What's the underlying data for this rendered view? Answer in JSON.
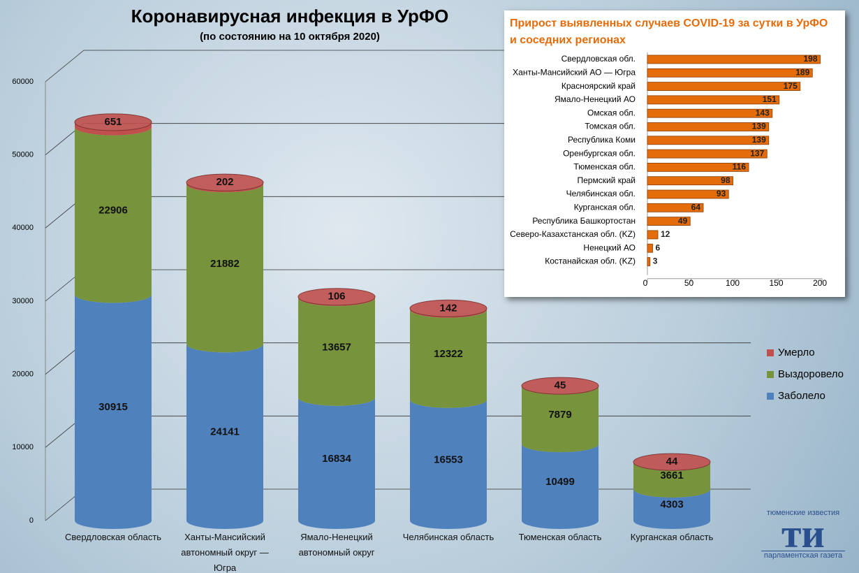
{
  "chart_data": [
    {
      "type": "bar",
      "stacked": true,
      "title": "Коронавирусная инфекция в УрФО",
      "subtitle": "(по состоянию на 10 октября 2020)",
      "categories": [
        "Свердловская область",
        "Ханты-Мансийский автономный округ — Югра",
        "Ямало-Ненецкий автономный округ",
        "Челябинская область",
        "Тюменская область",
        "Курганская область"
      ],
      "series": [
        {
          "name": "Заболело",
          "color": "#4f81bd",
          "values": [
            30915,
            24141,
            16834,
            16553,
            10499,
            4303
          ]
        },
        {
          "name": "Выздоровело",
          "color": "#77933c",
          "values": [
            22906,
            21882,
            13657,
            12322,
            7879,
            3661
          ]
        },
        {
          "name": "Умерло",
          "color": "#c0504d",
          "values": [
            651,
            202,
            106,
            142,
            45,
            44
          ]
        }
      ],
      "ylim": [
        0,
        60000
      ],
      "yticks": [
        0,
        10000,
        20000,
        30000,
        40000,
        50000,
        60000
      ],
      "grid": true,
      "legend": "right"
    },
    {
      "type": "barh",
      "title": "Прирост выявленных случаев COVID-19 за сутки в УрФО и соседних регионах",
      "categories": [
        "Свердловская обл.",
        "Ханты-Мансийский АО — Югра",
        "Красноярский край",
        "Ямало-Ненецкий АО",
        "Омская обл.",
        "Томская обл.",
        "Республика Коми",
        "Оренбургская обл.",
        "Тюменская обл.",
        "Пермский край",
        "Челябинская обл.",
        "Курганская обл.",
        "Республика Башкортостан",
        "Северо-Казахстанская обл. (KZ)",
        "Ненецкий АО",
        "Костанайская обл. (KZ)"
      ],
      "values": [
        198,
        189,
        175,
        151,
        143,
        139,
        139,
        137,
        116,
        98,
        93,
        64,
        49,
        12,
        6,
        3
      ],
      "color": "#e46c0a",
      "xlim": [
        0,
        200
      ],
      "xticks": [
        0,
        50,
        100,
        150,
        200
      ],
      "grid": false
    }
  ],
  "logo": {
    "top": "тюменские известия",
    "mark": "ти",
    "bottom": "парламентская газета"
  }
}
